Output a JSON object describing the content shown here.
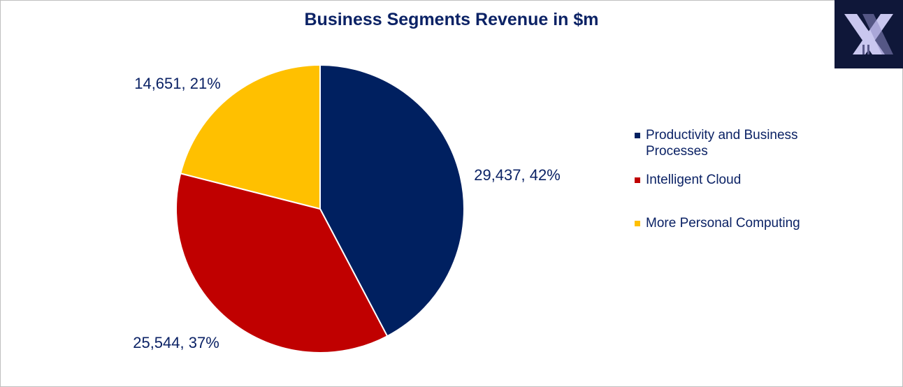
{
  "chart_data": {
    "type": "pie",
    "title": "Business Segments Revenue in $m",
    "categories": [
      "Productivity and Business Processes",
      "Intelligent Cloud",
      "More Personal Computing"
    ],
    "values": [
      29437,
      25544,
      14651
    ],
    "percentages": [
      42,
      37,
      21
    ],
    "data_labels": [
      "29,437, 42%",
      "25,544, 37%",
      "14,651, 21%"
    ],
    "colors": [
      "#002060",
      "#c00000",
      "#ffc000"
    ],
    "legend_position": "right",
    "start_angle_deg": 0,
    "direction": "clockwise"
  },
  "logo": {
    "icon": "x-logo-icon",
    "background": "#0f1739"
  }
}
